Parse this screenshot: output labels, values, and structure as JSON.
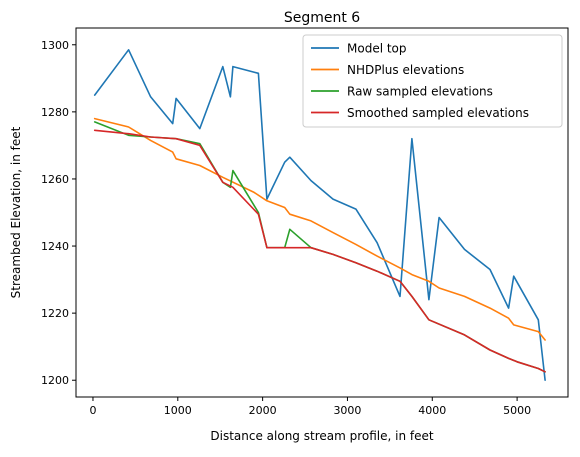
{
  "chart_data": {
    "type": "line",
    "title": "Segment 6",
    "xlabel": "Distance along stream profile, in feet",
    "ylabel": "Streambed Elevation, in feet",
    "xlim": [
      -200,
      5600
    ],
    "ylim": [
      1195,
      1305
    ],
    "xticks": [
      0,
      1000,
      2000,
      3000,
      4000,
      5000
    ],
    "yticks": [
      1200,
      1220,
      1240,
      1260,
      1280,
      1300
    ],
    "grid": false,
    "legend_position": "top-right",
    "series": [
      {
        "name": "Model top",
        "color": "#1f77b4",
        "x": [
          20,
          420,
          680,
          940,
          980,
          1260,
          1530,
          1620,
          1650,
          1950,
          2050,
          2260,
          2320,
          2570,
          2830,
          3100,
          3350,
          3620,
          3760,
          3960,
          4080,
          4380,
          4680,
          4900,
          4960,
          5250,
          5330
        ],
        "y": [
          1285,
          1298.5,
          1284.5,
          1276.5,
          1284,
          1275,
          1293.5,
          1284.5,
          1293.5,
          1291.5,
          1254,
          1265,
          1266.5,
          1259.5,
          1254,
          1251,
          1241,
          1225,
          1272,
          1224,
          1248.5,
          1239,
          1233,
          1221.5,
          1231,
          1218,
          1200
        ]
      },
      {
        "name": "NHDPlus elevations",
        "color": "#ff7f0e",
        "x": [
          20,
          420,
          680,
          940,
          980,
          1260,
          1530,
          1900,
          2050,
          2260,
          2320,
          2570,
          2830,
          3100,
          3350,
          3620,
          3760,
          3960,
          4080,
          4380,
          4680,
          4900,
          4960,
          5250,
          5330
        ],
        "y": [
          1278,
          1275.5,
          1271.5,
          1268,
          1266,
          1264,
          1260.5,
          1256,
          1253.5,
          1251.5,
          1249.5,
          1247.5,
          1244,
          1240.5,
          1237,
          1233.5,
          1231.5,
          1229.5,
          1227.5,
          1225,
          1221.5,
          1218.5,
          1216.5,
          1214.5,
          1212
        ]
      },
      {
        "name": "Raw sampled elevations",
        "color": "#2ca02c",
        "x": [
          20,
          420,
          680,
          980,
          1260,
          1530,
          1620,
          1650,
          1950,
          2050,
          2260,
          2320,
          2570,
          2830,
          3100,
          3350,
          3620,
          3760,
          3960,
          4380,
          4680,
          4900,
          5000,
          5250,
          5330
        ],
        "y": [
          1277,
          1273,
          1272.5,
          1272,
          1270.5,
          1259,
          1257.5,
          1262.5,
          1250,
          1239.5,
          1239.5,
          1245,
          1239.5,
          1237.5,
          1235,
          1232.5,
          1229.5,
          1225,
          1218,
          1213.5,
          1209,
          1206.5,
          1205.5,
          1203.5,
          1202.5
        ]
      },
      {
        "name": "Smoothed sampled elevations",
        "color": "#d62728",
        "x": [
          20,
          420,
          680,
          980,
          1260,
          1530,
          1650,
          1950,
          2050,
          2260,
          2320,
          2570,
          2830,
          3100,
          3350,
          3620,
          3760,
          3960,
          4380,
          4680,
          4900,
          5000,
          5250,
          5330
        ],
        "y": [
          1274.5,
          1273.5,
          1272.5,
          1272,
          1270,
          1259,
          1257.5,
          1249.5,
          1239.5,
          1239.5,
          1239.5,
          1239.5,
          1237.5,
          1235,
          1232.5,
          1229.5,
          1225,
          1218,
          1213.5,
          1209,
          1206.5,
          1205.5,
          1203.5,
          1202.5
        ]
      }
    ]
  }
}
